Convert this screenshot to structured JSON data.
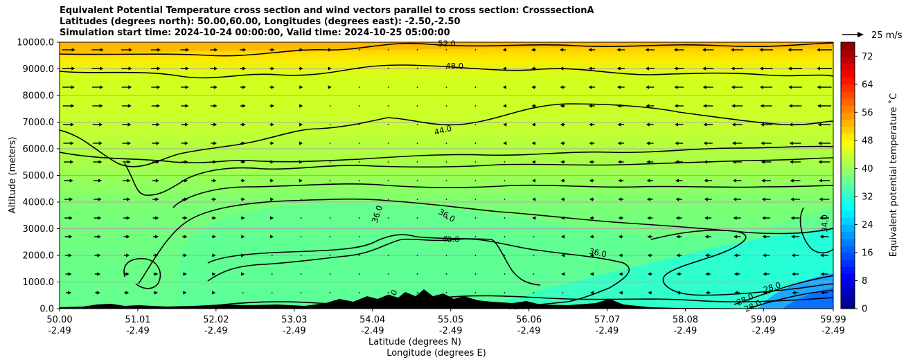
{
  "chart_data": {
    "type": "contour",
    "title_lines": [
      "Equivalent Potential Temperature cross section and wind vectors parallel to cross section: CrosssectionA",
      "Latitudes (degrees north): 50.00,60.00, Longitudes (degrees east): -2.50,-2.50",
      "Simulation start time: 2024-10-24 00:00:00, Valid time: 2024-10-25 05:00:00"
    ],
    "ylabel": "Altitude (meters)",
    "xlabel": "Latitude (degrees N)",
    "xlabel2": "Longitude (degrees E)",
    "ylim": [
      0,
      10000
    ],
    "xlim": [
      50.0,
      59.99
    ],
    "y_ticks": [
      {
        "value": 0,
        "label": "0.0"
      },
      {
        "value": 1000,
        "label": "1000.0"
      },
      {
        "value": 2000,
        "label": "2000.0"
      },
      {
        "value": 3000,
        "label": "3000.0"
      },
      {
        "value": 4000,
        "label": "4000.0"
      },
      {
        "value": 5000,
        "label": "5000.0"
      },
      {
        "value": 6000,
        "label": "6000.0"
      },
      {
        "value": 7000,
        "label": "7000.0"
      },
      {
        "value": 8000,
        "label": "8000.0"
      },
      {
        "value": 9000,
        "label": "9000.0"
      },
      {
        "value": 10000,
        "label": "10000.0"
      }
    ],
    "x_ticks": [
      {
        "value": 50.0,
        "lat": "50.00",
        "lon": "-2.49"
      },
      {
        "value": 51.01,
        "lat": "51.01",
        "lon": "-2.49"
      },
      {
        "value": 52.02,
        "lat": "52.02",
        "lon": "-2.49"
      },
      {
        "value": 53.03,
        "lat": "53.03",
        "lon": "-2.49"
      },
      {
        "value": 54.04,
        "lat": "54.04",
        "lon": "-2.49"
      },
      {
        "value": 55.05,
        "lat": "55.05",
        "lon": "-2.49"
      },
      {
        "value": 56.06,
        "lat": "56.06",
        "lon": "-2.49"
      },
      {
        "value": 57.07,
        "lat": "57.07",
        "lon": "-2.49"
      },
      {
        "value": 58.08,
        "lat": "58.08",
        "lon": "-2.49"
      },
      {
        "value": 59.09,
        "lat": "59.09",
        "lon": "-2.49"
      },
      {
        "value": 59.99,
        "lat": "59.99",
        "lon": "-2.49"
      }
    ],
    "colorbar": {
      "label": "Equivalent potential temperature ˚C",
      "min": 0,
      "max": 76,
      "ticks": [
        {
          "value": 0,
          "label": "0"
        },
        {
          "value": 8,
          "label": "8"
        },
        {
          "value": 16,
          "label": "16"
        },
        {
          "value": 24,
          "label": "24"
        },
        {
          "value": 32,
          "label": "32"
        },
        {
          "value": 40,
          "label": "40"
        },
        {
          "value": 48,
          "label": "48"
        },
        {
          "value": 56,
          "label": "56"
        },
        {
          "value": 64,
          "label": "64"
        },
        {
          "value": 72,
          "label": "72"
        }
      ]
    },
    "quiver_key": "25 m/s",
    "contour_labels": [
      {
        "text": "52.0",
        "lat": 55.0,
        "alt": 9950,
        "rot": 0
      },
      {
        "text": "48.0",
        "lat": 55.1,
        "alt": 9100,
        "rot": 0
      },
      {
        "text": "44.0",
        "lat": 54.95,
        "alt": 6700,
        "rot": -15
      },
      {
        "text": "36.0",
        "lat": 54.1,
        "alt": 3550,
        "rot": -72
      },
      {
        "text": "36.0",
        "lat": 55.0,
        "alt": 3500,
        "rot": 30
      },
      {
        "text": "40.0",
        "lat": 55.05,
        "alt": 2600,
        "rot": 0
      },
      {
        "text": "36.0",
        "lat": 56.95,
        "alt": 2100,
        "rot": 12
      },
      {
        "text": "28.0",
        "lat": 59.2,
        "alt": 800,
        "rot": -18
      },
      {
        "text": "28.0",
        "lat": 58.85,
        "alt": 350,
        "rot": -25
      },
      {
        "text": "28.0",
        "lat": 58.95,
        "alt": 100,
        "rot": -25
      },
      {
        "text": "34.0",
        "lat": 59.88,
        "alt": 3200,
        "rot": -90
      },
      {
        "text": "32.0",
        "lat": 55.9,
        "alt": 80,
        "rot": 0
      },
      {
        "text": "40",
        "lat": 54.3,
        "alt": 520,
        "rot": -60
      }
    ]
  }
}
